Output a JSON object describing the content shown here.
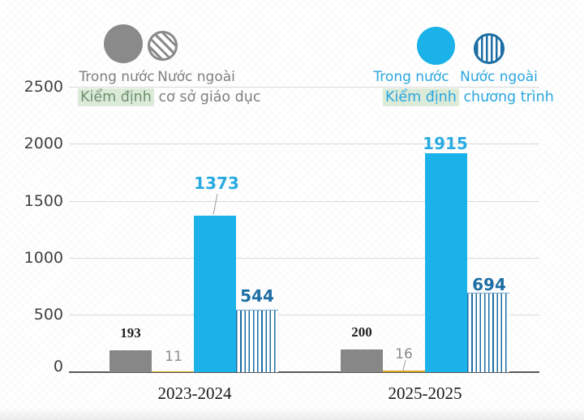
{
  "chart_data": {
    "type": "bar",
    "title": "",
    "categories": [
      "2023-2024",
      "2025-2025"
    ],
    "series": [
      {
        "name": "Kiểm định cơ sở giáo dục - Trong nước",
        "values": [
          193,
          200
        ],
        "color": "#878787",
        "pattern": "solid"
      },
      {
        "name": "Kiểm định cơ sở giáo dục - Nước ngoài",
        "values": [
          11,
          16
        ],
        "color": "#d9a521",
        "pattern": "solid"
      },
      {
        "name": "Kiểm định chương trình - Trong nước",
        "values": [
          1373,
          1915
        ],
        "color": "#1ab2e8",
        "pattern": "solid"
      },
      {
        "name": "Kiểm định chương trình - Nước ngoài",
        "values": [
          544,
          694
        ],
        "color": "#1c6ea4",
        "pattern": "vertical-stripes"
      }
    ],
    "ylim": [
      0,
      2500
    ],
    "yticks": [
      0,
      500,
      1000,
      1500,
      2000,
      2500
    ],
    "grid": true,
    "legend_position": "top"
  },
  "yticks": [
    "2500",
    "2000",
    "1500",
    "1000",
    "500",
    "0"
  ],
  "legend_left": {
    "item_solid": "Trong nước",
    "item_hatched": "Nước ngoài",
    "caption_highlight": "Kiểm định",
    "caption_rest": " cơ sở giáo dục"
  },
  "legend_right": {
    "item_solid": "Trong nước",
    "item_hatched": "Nước ngoài",
    "caption_highlight": "Kiểm định",
    "caption_rest": " chương trình"
  },
  "value_labels": {
    "g1_gray": "193",
    "g1_gold": "11",
    "g1_blue": "1373",
    "g1_striped": "544",
    "g2_gray": "200",
    "g2_gold": "16",
    "g2_blue": "1915",
    "g2_striped": "694"
  },
  "category_labels": {
    "c1": "2023-2024",
    "c2": "2025-2025"
  },
  "colors": {
    "bar_gray": "#878787",
    "bar_gold": "#d9a521",
    "bar_blue": "#1ab2e8",
    "stripe_blue": "#1c6ea4",
    "label_lightblue": "#29abe2",
    "highlight_green": "#dcead8",
    "grid": "#d9d9d9",
    "axis": "#595959"
  }
}
